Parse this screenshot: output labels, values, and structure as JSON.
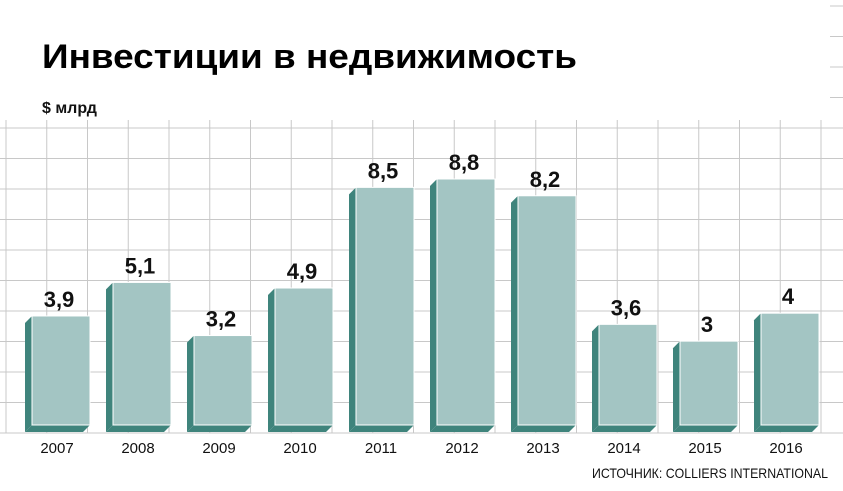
{
  "chart_data": {
    "type": "bar",
    "title": "Инвестиции в недвижимость",
    "unit_label": "$ млрд",
    "categories": [
      "2007",
      "2008",
      "2009",
      "2010",
      "2011",
      "2012",
      "2013",
      "2014",
      "2015",
      "2016"
    ],
    "values": [
      3.9,
      5.1,
      3.2,
      4.9,
      8.5,
      8.8,
      8.2,
      3.6,
      3,
      4
    ],
    "value_labels": [
      "3,9",
      "5,1",
      "3,2",
      "4,9",
      "8,5",
      "8,8",
      "8,2",
      "3,6",
      "3",
      "4"
    ],
    "ylim": [
      0,
      8.8
    ],
    "grid": true,
    "source": "ИСТОЧНИК: COLLIERS INTERNATIONAL"
  },
  "colors": {
    "bar_front": "#a3c5c3",
    "bar_side": "#3f847c",
    "bar_outline": "#ffffff",
    "grid": "#c8c8c8",
    "text": "#111111"
  }
}
